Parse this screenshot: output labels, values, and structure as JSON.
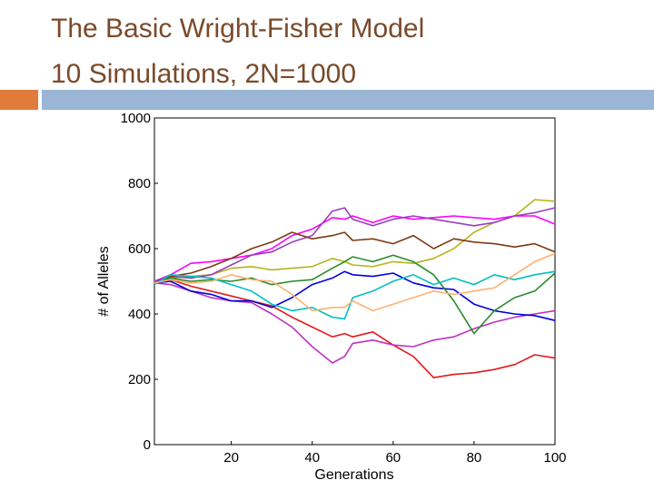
{
  "slide": {
    "title_line1": "The Basic Wright-Fisher Model",
    "title_line2": "10 Simulations, 2N=1000",
    "colors": {
      "title": "#7a4a2a",
      "accent_bar_left": "#e07b3a",
      "accent_bar_right": "#9ab6d4"
    }
  },
  "chart_data": {
    "type": "line",
    "xlabel": "Generations",
    "ylabel": "# of Alleles",
    "xlim": [
      1,
      100
    ],
    "ylim": [
      0,
      1000
    ],
    "xticks": [
      20,
      40,
      60,
      80,
      100
    ],
    "yticks": [
      0,
      200,
      400,
      600,
      800,
      1000
    ],
    "grid": false,
    "legend": "none",
    "x": [
      1,
      5,
      10,
      15,
      20,
      25,
      30,
      35,
      40,
      45,
      48,
      50,
      55,
      60,
      65,
      70,
      75,
      80,
      85,
      90,
      95,
      100
    ],
    "series": [
      {
        "color": "#e41a1c",
        "values": [
          500,
          505,
          485,
          470,
          455,
          440,
          425,
          390,
          360,
          330,
          340,
          330,
          345,
          305,
          270,
          205,
          215,
          220,
          230,
          245,
          275,
          265
        ]
      },
      {
        "color": "#b5b520",
        "values": [
          495,
          510,
          515,
          520,
          540,
          545,
          535,
          540,
          545,
          570,
          560,
          550,
          545,
          560,
          555,
          570,
          600,
          650,
          680,
          700,
          750,
          745
        ]
      },
      {
        "color": "#ff00ff",
        "values": [
          500,
          520,
          555,
          560,
          570,
          580,
          600,
          640,
          660,
          695,
          690,
          700,
          680,
          700,
          690,
          695,
          700,
          695,
          690,
          700,
          700,
          675
        ]
      },
      {
        "color": "#9a3dbf",
        "values": [
          500,
          515,
          510,
          520,
          550,
          580,
          590,
          620,
          640,
          715,
          725,
          690,
          670,
          690,
          700,
          690,
          680,
          670,
          680,
          700,
          710,
          725
        ]
      },
      {
        "color": "#7b3b14",
        "values": [
          495,
          515,
          525,
          545,
          570,
          600,
          620,
          650,
          630,
          640,
          650,
          625,
          630,
          615,
          640,
          600,
          630,
          620,
          615,
          605,
          615,
          590
        ]
      },
      {
        "color": "#c030c0",
        "values": [
          495,
          490,
          470,
          450,
          440,
          435,
          400,
          360,
          300,
          250,
          270,
          310,
          320,
          305,
          300,
          320,
          330,
          355,
          375,
          390,
          400,
          410
        ]
      },
      {
        "color": "#0000dd",
        "values": [
          495,
          500,
          470,
          460,
          440,
          440,
          420,
          450,
          490,
          510,
          530,
          520,
          515,
          525,
          495,
          480,
          475,
          430,
          410,
          400,
          395,
          380
        ]
      },
      {
        "color": "#2a8a2a",
        "values": [
          495,
          510,
          500,
          505,
          500,
          510,
          490,
          500,
          505,
          540,
          560,
          575,
          560,
          580,
          560,
          520,
          440,
          340,
          410,
          450,
          470,
          525
        ]
      },
      {
        "color": "#00c0c0",
        "values": [
          490,
          520,
          515,
          510,
          490,
          470,
          430,
          410,
          420,
          390,
          385,
          450,
          470,
          500,
          520,
          490,
          510,
          490,
          520,
          505,
          520,
          530
        ]
      },
      {
        "color": "#ffb070",
        "values": [
          495,
          505,
          495,
          500,
          520,
          505,
          500,
          460,
          410,
          420,
          420,
          440,
          410,
          430,
          450,
          470,
          460,
          470,
          480,
          520,
          560,
          585
        ]
      }
    ]
  }
}
